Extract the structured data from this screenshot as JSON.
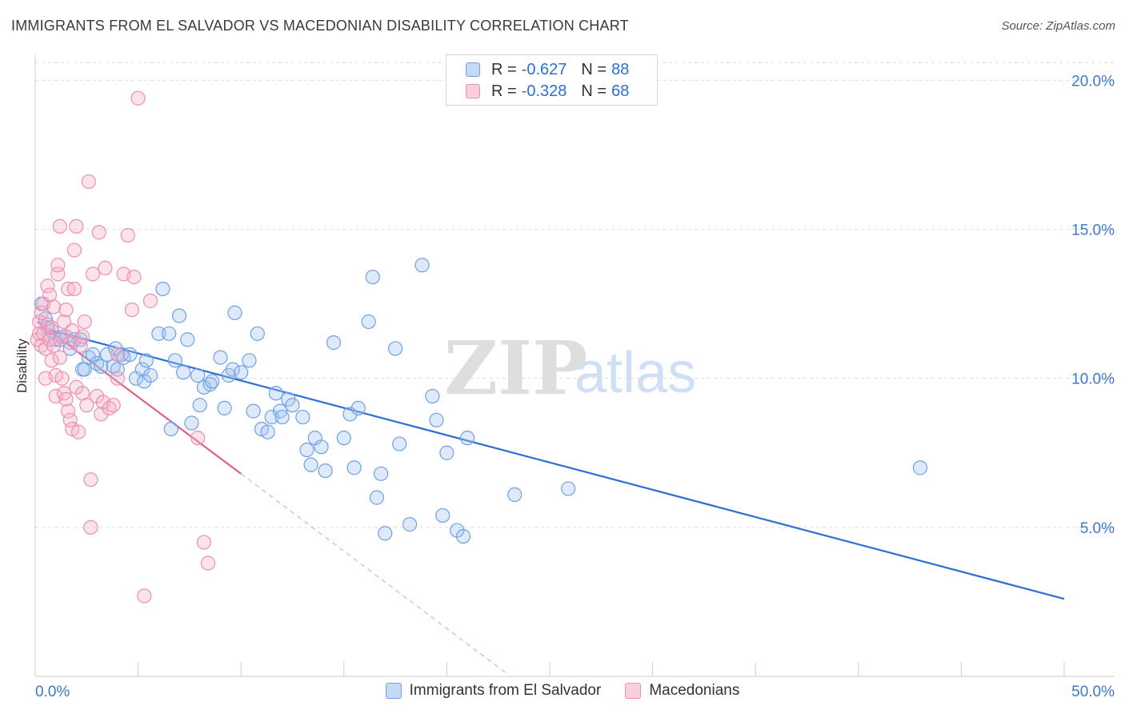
{
  "title": "IMMIGRANTS FROM EL SALVADOR VS MACEDONIAN DISABILITY CORRELATION CHART",
  "source": "Source: ZipAtlas.com",
  "watermark": {
    "zip": "ZIP",
    "atlas": "atlas"
  },
  "legend": {
    "r_label": "R =",
    "n_label": "N =",
    "series": [
      {
        "r": "-0.627",
        "n": "88",
        "color": "#6fa0e6"
      },
      {
        "r": "-0.328",
        "n": "68",
        "color": "#ee8fb0"
      }
    ]
  },
  "bottom_legend": [
    "Immigrants from El Salvador",
    "Macedonians"
  ],
  "chart_data": {
    "type": "scatter",
    "xlabel": "",
    "ylabel": "Disability",
    "xlim": [
      0,
      50
    ],
    "ylim": [
      0,
      20.6
    ],
    "x_tick_labels": [
      "0.0%",
      "50.0%"
    ],
    "y_ticks": [
      5,
      10,
      15,
      20
    ],
    "y_tick_labels": [
      "5.0%",
      "10.0%",
      "15.0%",
      "20.0%"
    ],
    "grid": "horizontal dashed",
    "legend_position": "top-center",
    "series": [
      {
        "name": "Immigrants from El Salvador",
        "color": "#6fa0e6",
        "trend": {
          "x": [
            0.3,
            50
          ],
          "y": [
            11.7,
            2.6
          ],
          "style": "solid"
        },
        "points": [
          [
            0.3,
            12.5
          ],
          [
            0.5,
            12.0
          ],
          [
            0.6,
            11.7
          ],
          [
            0.8,
            11.6
          ],
          [
            1.0,
            11.3
          ],
          [
            1.2,
            11.3
          ],
          [
            1.5,
            11.4
          ],
          [
            1.7,
            11.0
          ],
          [
            1.9,
            11.3
          ],
          [
            2.2,
            11.3
          ],
          [
            2.3,
            10.3
          ],
          [
            2.4,
            10.3
          ],
          [
            2.6,
            10.7
          ],
          [
            2.8,
            10.8
          ],
          [
            3.0,
            10.5
          ],
          [
            3.2,
            10.4
          ],
          [
            3.5,
            10.8
          ],
          [
            3.8,
            10.4
          ],
          [
            3.9,
            11.0
          ],
          [
            4.0,
            10.3
          ],
          [
            4.2,
            10.8
          ],
          [
            4.3,
            10.7
          ],
          [
            4.6,
            10.8
          ],
          [
            4.9,
            10.0
          ],
          [
            5.2,
            10.3
          ],
          [
            5.3,
            9.9
          ],
          [
            5.4,
            10.6
          ],
          [
            5.6,
            10.1
          ],
          [
            6.0,
            11.5
          ],
          [
            6.2,
            13.0
          ],
          [
            6.5,
            11.5
          ],
          [
            6.6,
            8.3
          ],
          [
            6.8,
            10.6
          ],
          [
            7.0,
            12.1
          ],
          [
            7.2,
            10.2
          ],
          [
            7.4,
            11.3
          ],
          [
            7.6,
            8.5
          ],
          [
            7.9,
            10.1
          ],
          [
            8.0,
            9.1
          ],
          [
            8.2,
            9.7
          ],
          [
            8.5,
            9.8
          ],
          [
            8.6,
            9.9
          ],
          [
            9.0,
            10.7
          ],
          [
            9.2,
            9.0
          ],
          [
            9.4,
            10.1
          ],
          [
            9.6,
            10.3
          ],
          [
            9.7,
            12.2
          ],
          [
            10.0,
            10.2
          ],
          [
            10.4,
            10.6
          ],
          [
            10.6,
            8.9
          ],
          [
            10.8,
            11.5
          ],
          [
            11.0,
            8.3
          ],
          [
            11.3,
            8.2
          ],
          [
            11.5,
            8.7
          ],
          [
            11.7,
            9.5
          ],
          [
            11.9,
            8.9
          ],
          [
            12.0,
            8.7
          ],
          [
            12.3,
            9.3
          ],
          [
            12.5,
            9.1
          ],
          [
            13.0,
            8.7
          ],
          [
            13.2,
            7.6
          ],
          [
            13.4,
            7.1
          ],
          [
            13.6,
            8.0
          ],
          [
            13.9,
            7.7
          ],
          [
            14.1,
            6.9
          ],
          [
            14.5,
            11.2
          ],
          [
            15.0,
            8.0
          ],
          [
            15.3,
            8.8
          ],
          [
            15.5,
            7.0
          ],
          [
            15.7,
            9.0
          ],
          [
            16.2,
            11.9
          ],
          [
            16.4,
            13.4
          ],
          [
            16.6,
            6.0
          ],
          [
            16.8,
            6.8
          ],
          [
            17.0,
            4.8
          ],
          [
            17.5,
            11.0
          ],
          [
            17.7,
            7.8
          ],
          [
            18.2,
            5.1
          ],
          [
            18.8,
            13.8
          ],
          [
            19.3,
            9.4
          ],
          [
            19.5,
            8.6
          ],
          [
            19.8,
            5.4
          ],
          [
            20.0,
            7.5
          ],
          [
            20.5,
            4.9
          ],
          [
            20.8,
            4.7
          ],
          [
            21.0,
            8.0
          ],
          [
            23.3,
            6.1
          ],
          [
            25.9,
            6.3
          ],
          [
            43.0,
            7.0
          ]
        ]
      },
      {
        "name": "Macedonians",
        "color": "#ee8fb0",
        "trend": {
          "x": [
            0.1,
            10.0
          ],
          "y": [
            11.9,
            6.8
          ],
          "style": "solid",
          "extend_x": 23.0,
          "extend_y": 0.05
        },
        "points": [
          [
            0.1,
            11.3
          ],
          [
            0.2,
            11.9
          ],
          [
            0.2,
            11.5
          ],
          [
            0.3,
            11.1
          ],
          [
            0.3,
            12.2
          ],
          [
            0.4,
            11.5
          ],
          [
            0.4,
            12.5
          ],
          [
            0.5,
            11.0
          ],
          [
            0.5,
            10.0
          ],
          [
            0.6,
            11.8
          ],
          [
            0.6,
            13.1
          ],
          [
            0.7,
            12.8
          ],
          [
            0.7,
            11.3
          ],
          [
            0.8,
            10.6
          ],
          [
            0.8,
            11.7
          ],
          [
            0.9,
            12.4
          ],
          [
            0.9,
            11.1
          ],
          [
            1.0,
            10.1
          ],
          [
            1.0,
            9.4
          ],
          [
            1.1,
            13.5
          ],
          [
            1.1,
            13.8
          ],
          [
            1.2,
            10.7
          ],
          [
            1.2,
            15.1
          ],
          [
            1.3,
            11.4
          ],
          [
            1.3,
            10.0
          ],
          [
            1.4,
            11.9
          ],
          [
            1.4,
            9.5
          ],
          [
            1.5,
            12.3
          ],
          [
            1.5,
            9.3
          ],
          [
            1.6,
            8.9
          ],
          [
            1.6,
            13.0
          ],
          [
            1.7,
            8.6
          ],
          [
            1.7,
            11.2
          ],
          [
            1.8,
            11.6
          ],
          [
            1.8,
            8.3
          ],
          [
            1.9,
            13.0
          ],
          [
            1.9,
            14.3
          ],
          [
            2.0,
            15.1
          ],
          [
            2.0,
            9.7
          ],
          [
            2.1,
            8.2
          ],
          [
            2.2,
            11.1
          ],
          [
            2.3,
            11.4
          ],
          [
            2.3,
            9.5
          ],
          [
            2.4,
            11.9
          ],
          [
            2.5,
            9.1
          ],
          [
            2.6,
            16.6
          ],
          [
            2.7,
            6.6
          ],
          [
            2.7,
            5.0
          ],
          [
            2.8,
            13.5
          ],
          [
            3.0,
            9.4
          ],
          [
            3.1,
            14.9
          ],
          [
            3.2,
            8.8
          ],
          [
            3.3,
            9.2
          ],
          [
            3.4,
            13.7
          ],
          [
            3.6,
            9.0
          ],
          [
            3.8,
            9.1
          ],
          [
            4.0,
            10.0
          ],
          [
            4.0,
            10.8
          ],
          [
            4.3,
            13.5
          ],
          [
            4.5,
            14.8
          ],
          [
            4.7,
            12.3
          ],
          [
            4.8,
            13.4
          ],
          [
            5.0,
            19.4
          ],
          [
            5.3,
            2.7
          ],
          [
            5.6,
            12.6
          ],
          [
            7.9,
            8.0
          ],
          [
            8.2,
            4.5
          ],
          [
            8.4,
            3.8
          ]
        ]
      }
    ]
  }
}
